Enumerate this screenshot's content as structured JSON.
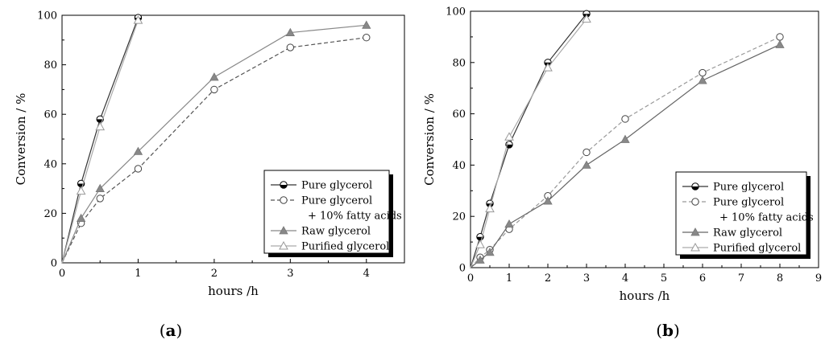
{
  "chart_data": [
    {
      "type": "line",
      "panel_label_open": "(",
      "panel_label_letter": "a",
      "panel_label_close": ")",
      "xlabel": "hours /h",
      "ylabel": "Conversion / %",
      "xlim": [
        0,
        4.5
      ],
      "ylim": [
        0,
        100
      ],
      "xticks": [
        0,
        1,
        2,
        3,
        4
      ],
      "yticks": [
        0,
        20,
        40,
        60,
        80,
        100
      ],
      "grid": false,
      "legend_position": "bottom-right",
      "legend_lines": [
        "Pure glycerol",
        "Pure glycerol",
        "+ 10% fatty acids",
        "Raw glycerol",
        "Purified glycerol"
      ],
      "series": [
        {
          "name": "Pure glycerol",
          "color": "#333333",
          "dash": "solid",
          "marker": "half-filled-circle",
          "x": [
            0,
            0.25,
            0.5,
            1
          ],
          "y": [
            0,
            32,
            58,
            99
          ]
        },
        {
          "name": "Pure glycerol + 10% fatty acids",
          "color": "#555555",
          "dash": "dashed",
          "marker": "open-circle",
          "x": [
            0,
            0.25,
            0.5,
            1,
            2,
            3,
            4
          ],
          "y": [
            0,
            16,
            26,
            38,
            70,
            87,
            91
          ]
        },
        {
          "name": "Raw glycerol",
          "color": "#888888",
          "dash": "solid",
          "marker": "filled-triangle",
          "x": [
            0,
            0.25,
            0.5,
            1,
            2,
            3,
            4
          ],
          "y": [
            0,
            18,
            30,
            45,
            75,
            93,
            96
          ]
        },
        {
          "name": "Purified glycerol",
          "color": "#aaaaaa",
          "dash": "solid",
          "marker": "open-triangle",
          "x": [
            0,
            0.25,
            0.5,
            1
          ],
          "y": [
            0,
            29,
            55,
            98
          ]
        }
      ]
    },
    {
      "type": "line",
      "panel_label_open": "(",
      "panel_label_letter": "b",
      "panel_label_close": ")",
      "xlabel": "hours /h",
      "ylabel": "Conversion / %",
      "xlim": [
        0,
        9
      ],
      "ylim": [
        0,
        100
      ],
      "xticks": [
        0,
        1,
        2,
        3,
        4,
        5,
        6,
        7,
        8,
        9
      ],
      "yticks": [
        0,
        20,
        40,
        60,
        80,
        100
      ],
      "grid": false,
      "legend_position": "bottom-right",
      "legend_lines": [
        "Pure glycerol",
        "Pure glycerol",
        "+ 10% fatty acids",
        "Raw glycerol",
        "Purified glycerol"
      ],
      "series": [
        {
          "name": "Pure glycerol",
          "color": "#333333",
          "dash": "solid",
          "marker": "half-filled-circle",
          "x": [
            0,
            0.25,
            0.5,
            1,
            2,
            3
          ],
          "y": [
            0,
            12,
            25,
            48,
            80,
            99
          ]
        },
        {
          "name": "Pure glycerol + 10% fatty acids",
          "color": "#999999",
          "dash": "dashed",
          "marker": "open-circle",
          "x": [
            0,
            0.25,
            0.5,
            1,
            2,
            3,
            4,
            6,
            8
          ],
          "y": [
            0,
            4,
            7,
            15,
            28,
            45,
            58,
            76,
            90
          ]
        },
        {
          "name": "Raw glycerol",
          "color": "#666666",
          "dash": "solid",
          "marker": "filled-triangle",
          "x": [
            0,
            0.25,
            0.5,
            1,
            2,
            3,
            4,
            6,
            8
          ],
          "y": [
            0,
            3,
            6,
            17,
            26,
            40,
            50,
            73,
            87
          ]
        },
        {
          "name": "Purified glycerol",
          "color": "#aaaaaa",
          "dash": "solid",
          "marker": "open-triangle",
          "x": [
            0,
            0.25,
            0.5,
            1,
            2,
            3
          ],
          "y": [
            0,
            9,
            23,
            51,
            78,
            97
          ]
        }
      ]
    }
  ]
}
